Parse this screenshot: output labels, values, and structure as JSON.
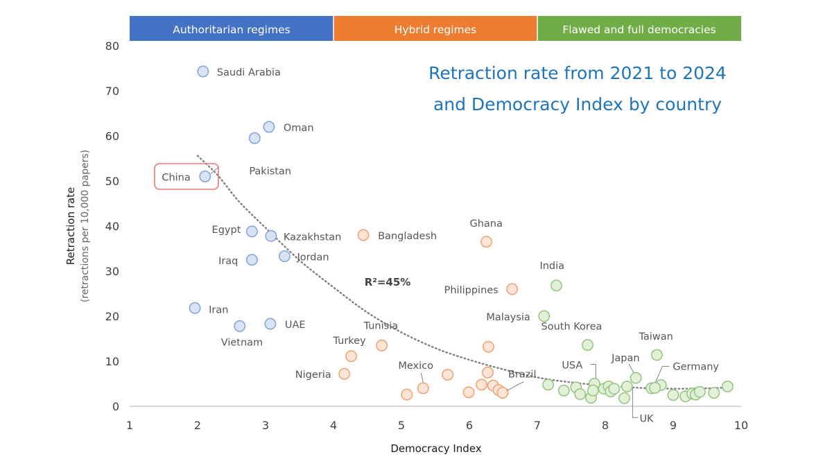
{
  "chart_data": {
    "type": "scatter",
    "title": [
      "Retraction rate from 2021 to 2024",
      "and Democracy Index by country"
    ],
    "xlabel": "Democracy Index",
    "ylabel": "Retraction rate",
    "ylabel_sub": "(retractions per 10,000 papers)",
    "xlim": [
      1,
      10
    ],
    "ylim": [
      0,
      80
    ],
    "xticks": [
      1,
      2,
      3,
      4,
      5,
      6,
      7,
      8,
      9,
      10
    ],
    "yticks": [
      0,
      10,
      20,
      30,
      40,
      50,
      60,
      70,
      80
    ],
    "grid": false,
    "regime_bands": [
      {
        "label": "Authoritarian regimes",
        "from": 1,
        "to": 4,
        "color": "#4472c4"
      },
      {
        "label": "Hybrid regimes",
        "from": 4,
        "to": 7,
        "color": "#ed7d31"
      },
      {
        "label": "Flawed and full democracies",
        "from": 7,
        "to": 10,
        "color": "#70ad47"
      }
    ],
    "series": [
      {
        "group": "authoritarian",
        "fill": "#dae3f3",
        "stroke": "#7ea3d8",
        "points": [
          {
            "x": 2.08,
            "y": 74.3,
            "label": "Saudi Arabia"
          },
          {
            "x": 3.05,
            "y": 62.0,
            "label": "Oman"
          },
          {
            "x": 2.84,
            "y": 59.5,
            "label": "Pakistan"
          },
          {
            "x": 2.11,
            "y": 51.0,
            "label": "China"
          },
          {
            "x": 2.8,
            "y": 38.8,
            "label": "Egypt"
          },
          {
            "x": 3.08,
            "y": 37.8,
            "label": "Kazakhstan"
          },
          {
            "x": 2.8,
            "y": 32.5,
            "label": "Iraq"
          },
          {
            "x": 3.28,
            "y": 33.3,
            "label": "Jordan"
          },
          {
            "x": 1.96,
            "y": 21.8,
            "label": "Iran"
          },
          {
            "x": 2.62,
            "y": 17.8,
            "label": "Vietnam"
          },
          {
            "x": 3.07,
            "y": 18.3,
            "label": "UAE"
          }
        ]
      },
      {
        "group": "hybrid",
        "fill": "#fbe5d6",
        "stroke": "#f0a170",
        "points": [
          {
            "x": 4.44,
            "y": 38.0,
            "label": "Bangladesh"
          },
          {
            "x": 6.25,
            "y": 36.5,
            "label": "Ghana"
          },
          {
            "x": 6.63,
            "y": 26.0,
            "label": "Philippines"
          },
          {
            "x": 4.71,
            "y": 13.5,
            "label": "Tunisia"
          },
          {
            "x": 6.28,
            "y": 13.2,
            "label": ""
          },
          {
            "x": 4.26,
            "y": 11.1,
            "label": "Turkey"
          },
          {
            "x": 4.16,
            "y": 7.2,
            "label": "Nigeria"
          },
          {
            "x": 5.32,
            "y": 4.0,
            "label": "Mexico"
          },
          {
            "x": 5.08,
            "y": 2.6,
            "label": ""
          },
          {
            "x": 5.68,
            "y": 7.0,
            "label": ""
          },
          {
            "x": 6.27,
            "y": 7.5,
            "label": ""
          },
          {
            "x": 6.18,
            "y": 4.8,
            "label": ""
          },
          {
            "x": 6.35,
            "y": 4.6,
            "label": ""
          },
          {
            "x": 6.43,
            "y": 3.6,
            "label": ""
          },
          {
            "x": 6.49,
            "y": 3.0,
            "label": "Brazil"
          },
          {
            "x": 5.99,
            "y": 3.1,
            "label": ""
          }
        ]
      },
      {
        "group": "democracy",
        "fill": "#e2efd9",
        "stroke": "#93c47d",
        "points": [
          {
            "x": 7.28,
            "y": 26.8,
            "label": "India"
          },
          {
            "x": 7.1,
            "y": 20.0,
            "label": "Malaysia"
          },
          {
            "x": 7.74,
            "y": 13.6,
            "label": "South Korea"
          },
          {
            "x": 8.76,
            "y": 11.4,
            "label": "Taiwan"
          },
          {
            "x": 8.45,
            "y": 6.3,
            "label": "Japan"
          },
          {
            "x": 7.84,
            "y": 5.0,
            "label": "USA"
          },
          {
            "x": 8.82,
            "y": 4.7,
            "label": "Germany"
          },
          {
            "x": 8.28,
            "y": 1.8,
            "label": "UK"
          },
          {
            "x": 7.16,
            "y": 4.8,
            "label": ""
          },
          {
            "x": 7.39,
            "y": 3.5,
            "label": ""
          },
          {
            "x": 7.57,
            "y": 4.2,
            "label": ""
          },
          {
            "x": 7.63,
            "y": 2.7,
            "label": ""
          },
          {
            "x": 7.79,
            "y": 1.9,
            "label": ""
          },
          {
            "x": 7.82,
            "y": 3.5,
            "label": ""
          },
          {
            "x": 7.98,
            "y": 3.9,
            "label": ""
          },
          {
            "x": 8.05,
            "y": 4.4,
            "label": ""
          },
          {
            "x": 8.08,
            "y": 3.3,
            "label": ""
          },
          {
            "x": 8.13,
            "y": 3.9,
            "label": ""
          },
          {
            "x": 8.32,
            "y": 4.4,
            "label": ""
          },
          {
            "x": 8.68,
            "y": 4.0,
            "label": ""
          },
          {
            "x": 8.73,
            "y": 4.1,
            "label": ""
          },
          {
            "x": 9.0,
            "y": 2.5,
            "label": ""
          },
          {
            "x": 9.18,
            "y": 2.2,
            "label": ""
          },
          {
            "x": 9.28,
            "y": 2.8,
            "label": ""
          },
          {
            "x": 9.33,
            "y": 2.6,
            "label": ""
          },
          {
            "x": 9.39,
            "y": 3.2,
            "label": ""
          },
          {
            "x": 9.6,
            "y": 3.0,
            "label": ""
          },
          {
            "x": 9.8,
            "y": 4.4,
            "label": ""
          }
        ]
      }
    ],
    "trendline": {
      "label": "R²=45%",
      "style": "dotted",
      "points": [
        [
          2.0,
          55.6
        ],
        [
          2.3,
          51.2
        ],
        [
          2.6,
          45.6
        ],
        [
          3.0,
          39.6
        ],
        [
          3.5,
          32.4
        ],
        [
          4.0,
          26.4
        ],
        [
          4.5,
          20.8
        ],
        [
          5.0,
          16.4
        ],
        [
          5.5,
          12.9
        ],
        [
          6.0,
          10.3
        ],
        [
          6.5,
          8.2
        ],
        [
          7.0,
          6.4
        ],
        [
          7.5,
          5.3
        ],
        [
          8.0,
          4.6
        ],
        [
          8.5,
          4.1
        ],
        [
          9.0,
          3.9
        ],
        [
          9.5,
          4.0
        ],
        [
          9.85,
          4.2
        ]
      ]
    },
    "highlight": {
      "label": "China",
      "color": "#e8797a"
    }
  }
}
